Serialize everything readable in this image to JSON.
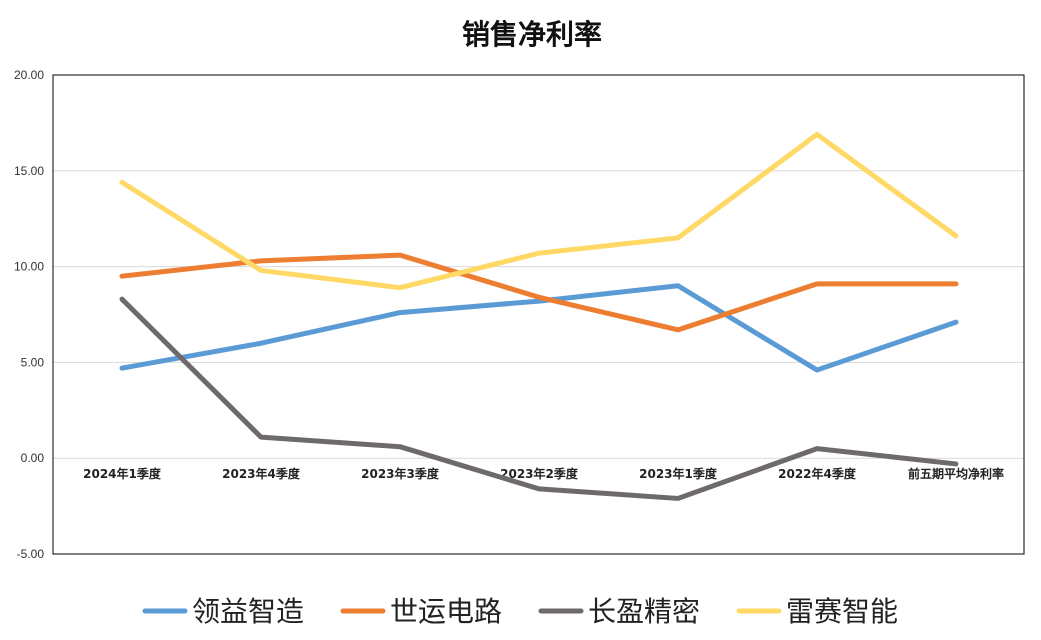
{
  "chart_data": {
    "type": "line",
    "title": "销售净利率",
    "xlabel": "",
    "ylabel": "",
    "ylim": [
      -5,
      20
    ],
    "y_ticks": [
      "20.00",
      "15.00",
      "10.00",
      "5.00",
      "0.00",
      "-5.00"
    ],
    "grid": true,
    "legend_position": "bottom",
    "categories": [
      "2024年1季度",
      "2023年4季度",
      "2023年3季度",
      "2023年2季度",
      "2023年1季度",
      "2022年4季度",
      "前五期平均净利率"
    ],
    "series": [
      {
        "name": "领益智造",
        "color": "#5B9BD5",
        "values": [
          4.7,
          6.0,
          7.6,
          8.2,
          9.0,
          4.6,
          7.1
        ]
      },
      {
        "name": "世运电路",
        "color": "#ED7D31",
        "values": [
          9.5,
          10.3,
          10.6,
          8.4,
          6.7,
          9.1,
          9.1
        ]
      },
      {
        "name": "长盈精密",
        "color": "#6E6A6B",
        "values": [
          8.3,
          1.1,
          0.6,
          -1.6,
          -2.1,
          0.5,
          -0.3
        ]
      },
      {
        "name": "雷赛智能",
        "color": "#FFD966",
        "values": [
          14.4,
          9.8,
          8.9,
          10.7,
          11.5,
          16.9,
          11.6
        ]
      }
    ]
  }
}
